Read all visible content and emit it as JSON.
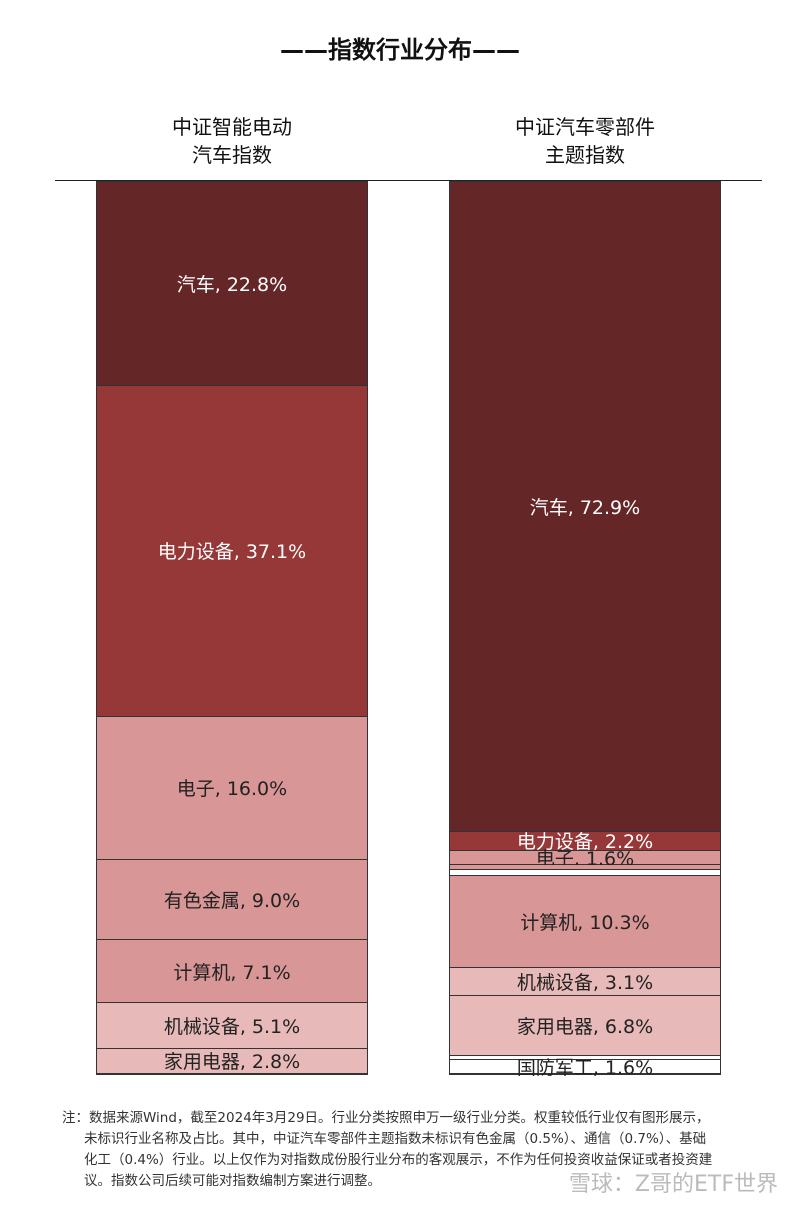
{
  "title": "——指数行业分布——",
  "colors": {
    "dark": "#652628",
    "mid": "#963838",
    "pink": "#d99696",
    "light": "#e8b9b9",
    "white": "#ffffff"
  },
  "chart_data": [
    {
      "type": "stacked-bar",
      "title": "中证智能电动\n汽车指数",
      "title_lines": [
        "中证智能电动",
        "汽车指数"
      ],
      "unit": "%",
      "segments": [
        {
          "name": "汽车",
          "value": 22.8,
          "label": "汽车, 22.8%",
          "color": "#652628"
        },
        {
          "name": "电力设备",
          "value": 37.1,
          "label": "电力设备, 37.1%",
          "color": "#963838"
        },
        {
          "name": "电子",
          "value": 16.0,
          "label": "电子, 16.0%",
          "color": "#d99696"
        },
        {
          "name": "有色金属",
          "value": 9.0,
          "label": "有色金属, 9.0%",
          "color": "#d99696"
        },
        {
          "name": "计算机",
          "value": 7.1,
          "label": "计算机, 7.1%",
          "color": "#d99696"
        },
        {
          "name": "机械设备",
          "value": 5.1,
          "label": "机械设备, 5.1%",
          "color": "#e8b9b9"
        },
        {
          "name": "家用电器",
          "value": 2.8,
          "label": "家用电器, 2.8%",
          "color": "#e8b9b9"
        }
      ]
    },
    {
      "type": "stacked-bar",
      "title_lines": [
        "中证汽车零部件",
        "主题指数"
      ],
      "unit": "%",
      "segments": [
        {
          "name": "汽车",
          "value": 72.9,
          "label": "汽车, 72.9%",
          "color": "#652628"
        },
        {
          "name": "电力设备",
          "value": 2.2,
          "label": "电力设备, 2.2%",
          "color": "#963838"
        },
        {
          "name": "电子",
          "value": 1.6,
          "label": "电子, 1.6%",
          "color": "#d99696"
        },
        {
          "name": "有色金属",
          "value": 0.5,
          "label": "",
          "color": "#d99696"
        },
        {
          "name": "通信",
          "value": 0.7,
          "label": "",
          "color": "#ffffff"
        },
        {
          "name": "计算机",
          "value": 10.3,
          "label": "计算机, 10.3%",
          "color": "#d99696"
        },
        {
          "name": "机械设备",
          "value": 3.1,
          "label": "机械设备, 3.1%",
          "color": "#e8b9b9"
        },
        {
          "name": "家用电器",
          "value": 6.8,
          "label": "家用电器, 6.8%",
          "color": "#e8b9b9"
        },
        {
          "name": "基础化工",
          "value": 0.4,
          "label": "",
          "color": "#ffffff"
        },
        {
          "name": "国防军工",
          "value": 1.6,
          "label": "国防军工, 1.6%",
          "color": "#ffffff"
        }
      ]
    }
  ],
  "note": [
    "注：数据来源Wind，截至2024年3月29日。行业分类按照申万一级行业分类。权重较低行业仅有图形展示，",
    "未标识行业名称及占比。其中，中证汽车零部件主题指数未标识有色金属（0.5%）、通信（0.7%）、基础",
    "化工（0.4%）行业。以上仅作为对指数成份股行业分布的客观展示，不作为任何投资收益保证或者投资建",
    "议。指数公司后续可能对指数编制方案进行调整。"
  ],
  "watermark": "雪球：Z哥的ETF世界"
}
